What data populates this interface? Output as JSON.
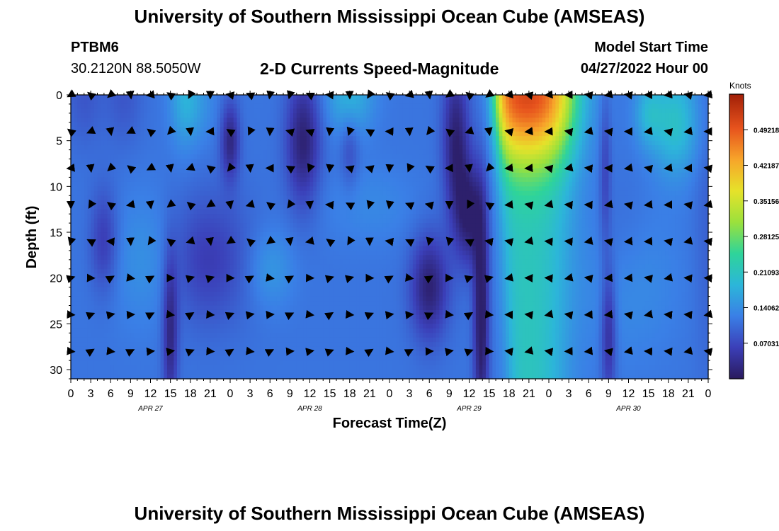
{
  "header": {
    "title": "University of Southern Mississippi Ocean Cube (AMSEAS)",
    "station": "PTBM6",
    "coords": "30.2120N  88.5050W",
    "subtitle": "2-D Currents Speed-Magnitude",
    "model_label": "Model Start Time",
    "model_time": "04/27/2022 Hour 00"
  },
  "footer": {
    "title": "University of Southern Mississippi Ocean Cube (AMSEAS)"
  },
  "colors": {
    "ramp": [
      "#2a1a5e",
      "#3b3fb8",
      "#3a7fe6",
      "#2cb6d9",
      "#2ed49a",
      "#9be13c",
      "#e6e22a",
      "#f7a52a",
      "#e7531d",
      "#a11f07"
    ]
  },
  "chart_data": {
    "type": "heatmap",
    "xlabel": "Forecast Time(Z)",
    "ylabel": "Depth (ft)",
    "ylim": [
      0,
      31
    ],
    "y_ticks": [
      0,
      5,
      10,
      15,
      20,
      25,
      30
    ],
    "x_range_hours": [
      0,
      96
    ],
    "x_tick_step_hours": 3,
    "x_tick_labels": [
      "0",
      "3",
      "6",
      "9",
      "12",
      "15",
      "18",
      "21",
      "0",
      "3",
      "6",
      "9",
      "12",
      "15",
      "18",
      "21",
      "0",
      "3",
      "6",
      "9",
      "12",
      "15",
      "18",
      "21",
      "0",
      "3",
      "6",
      "9",
      "12",
      "15",
      "18",
      "21",
      "0"
    ],
    "date_labels": [
      {
        "hour": 12,
        "label": "APR 27"
      },
      {
        "hour": 36,
        "label": "APR 28"
      },
      {
        "hour": 60,
        "label": "APR 29"
      },
      {
        "hour": 84,
        "label": "APR 30"
      }
    ],
    "colorbar": {
      "title": "Knots",
      "range": [
        0,
        0.5625
      ],
      "ticks": [
        0.49218,
        0.42187,
        0.35156,
        0.28125,
        0.21093,
        0.14062,
        0.07031
      ],
      "tick_labels": [
        "0.49218",
        "0.42187",
        "0.35156",
        "0.28125",
        "0.21093",
        "0.14062",
        "0.07031"
      ]
    },
    "arrow_depths_ft": [
      0,
      4,
      8,
      12,
      16,
      20,
      24,
      28
    ],
    "arrow_hour_step": 3,
    "speed_features": [
      {
        "center_hour": 2.0,
        "depth_ft": 0,
        "sx": 2,
        "sy": 4,
        "dv": -0.03
      },
      {
        "center_hour": 8.0,
        "depth_ft": 0,
        "sx": 2,
        "sy": 4,
        "dv": -0.03
      },
      {
        "center_hour": 17.0,
        "depth_ft": 0,
        "sx": 1.5,
        "sy": 4,
        "dv": 0.05
      },
      {
        "center_hour": 19.0,
        "depth_ft": 1,
        "sx": 2,
        "sy": 3,
        "dv": 0.03
      },
      {
        "center_hour": 24.0,
        "depth_ft": 5,
        "sx": 1.0,
        "sy": 3,
        "dv": -0.09
      },
      {
        "center_hour": 35.0,
        "depth_ft": 5,
        "sx": 1.8,
        "sy": 5,
        "dv": -0.1
      },
      {
        "center_hour": 42.0,
        "depth_ft": 0,
        "sx": 2.5,
        "sy": 3,
        "dv": 0.07
      },
      {
        "center_hour": 58.0,
        "depth_ft": 5,
        "sx": 1.4,
        "sy": 6,
        "dv": -0.1
      },
      {
        "center_hour": 60.0,
        "depth_ft": 13,
        "sx": 1.5,
        "sy": 4,
        "dv": -0.1
      },
      {
        "center_hour": 45.0,
        "depth_ft": 12,
        "sx": 5,
        "sy": 3,
        "dv": 0.02
      },
      {
        "center_hour": 54.0,
        "depth_ft": 21,
        "sx": 2,
        "sy": 4,
        "dv": -0.1
      },
      {
        "center_hour": 61.8,
        "depth_ft": 24,
        "sx": 0.8,
        "sy": 9,
        "dv": -0.12
      },
      {
        "center_hour": 20.0,
        "depth_ft": 18,
        "sx": 5,
        "sy": 5,
        "dv": -0.06
      },
      {
        "center_hour": 30.0,
        "depth_ft": 19,
        "sx": 2.5,
        "sy": 3,
        "dv": 0.04
      },
      {
        "center_hour": 5.0,
        "depth_ft": 16,
        "sx": 1.5,
        "sy": 4,
        "dv": -0.06
      },
      {
        "center_hour": 12.0,
        "depth_ft": 18,
        "sx": 4,
        "sy": 5,
        "dv": 0.04
      },
      {
        "center_hour": 15.0,
        "depth_ft": 26,
        "sx": 0.8,
        "sy": 6,
        "dv": -0.09
      },
      {
        "center_hour": 42.0,
        "depth_ft": 6,
        "sx": 1,
        "sy": 3,
        "dv": -0.04
      },
      {
        "center_hour": 81.0,
        "depth_ft": 26,
        "sx": 0.8,
        "sy": 5,
        "dv": -0.08
      },
      {
        "center_hour": 80.5,
        "depth_ft": 8,
        "sx": 0.6,
        "sy": 6,
        "dv": -0.05
      },
      {
        "center_hour": 84.0,
        "depth_ft": 20,
        "sx": 5,
        "sy": 6,
        "dv": 0.03
      },
      {
        "center_hour": 87.0,
        "depth_ft": 2,
        "sx": 1.5,
        "sy": 2.5,
        "dv": 0.06
      },
      {
        "center_hour": 91.0,
        "depth_ft": 3,
        "sx": 2.5,
        "sy": 4,
        "dv": 0.09
      },
      {
        "center_hour": 83.0,
        "depth_ft": 16,
        "sx": 3,
        "sy": 5,
        "dv": -0.02
      },
      {
        "center_hour": 96.0,
        "depth_ft": 14,
        "sx": 1.5,
        "sy": 12,
        "dv": -0.02
      }
    ],
    "plume": {
      "shallow_core_hour": 69.5,
      "shallow_peak_knots": 0.52,
      "deep_peak_knots": 0.22,
      "edge_at_surface_hour": 64.0,
      "edge_at_bottom_hour": 66.0,
      "back_at_surface_hour": 75.5,
      "back_at_bottom_hour": 74.0
    }
  }
}
